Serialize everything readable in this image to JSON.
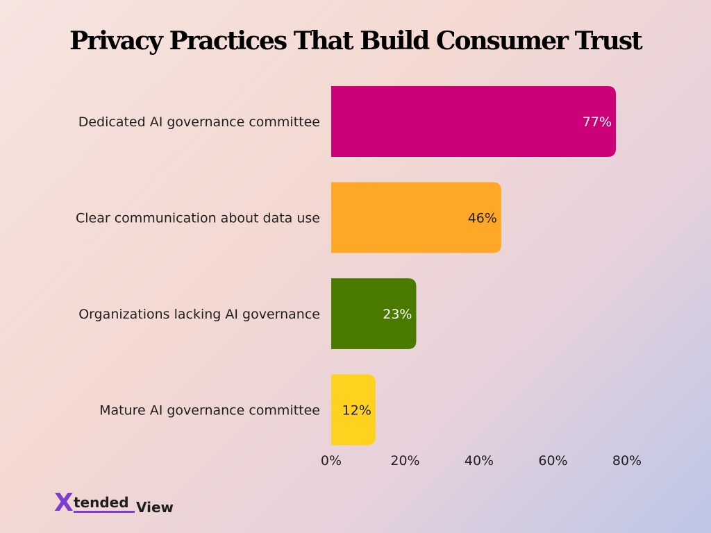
{
  "chart_data": {
    "type": "bar",
    "orientation": "horizontal",
    "title": "Privacy Practices That Build Consumer Trust",
    "categories": [
      "Dedicated AI governance committee",
      "Clear communication about data use",
      "Organizations lacking AI governance",
      "Mature AI governance committee"
    ],
    "values": [
      77,
      46,
      23,
      12
    ],
    "data_labels": [
      "77%",
      "46%",
      "23%",
      "12%"
    ],
    "colors": [
      "#cc0077",
      "#ffa726",
      "#4a7a00",
      "#ffd21f"
    ],
    "label_colors": [
      "#ffffff",
      "#1e1e1e",
      "#ffffff",
      "#1e1e1e"
    ],
    "xlim": [
      0,
      80
    ],
    "x_ticks": [
      "0%",
      "20%",
      "40%",
      "60%",
      "80%"
    ],
    "x_tick_values": [
      0,
      20,
      40,
      60,
      80
    ],
    "grid": false,
    "legend": "none"
  },
  "logo": {
    "mark": "X",
    "word1": "tended",
    "word2": "View",
    "colors": {
      "mark": "#7a3fcf",
      "accent": "#ffd21f",
      "text": "#1e1e1e"
    }
  }
}
